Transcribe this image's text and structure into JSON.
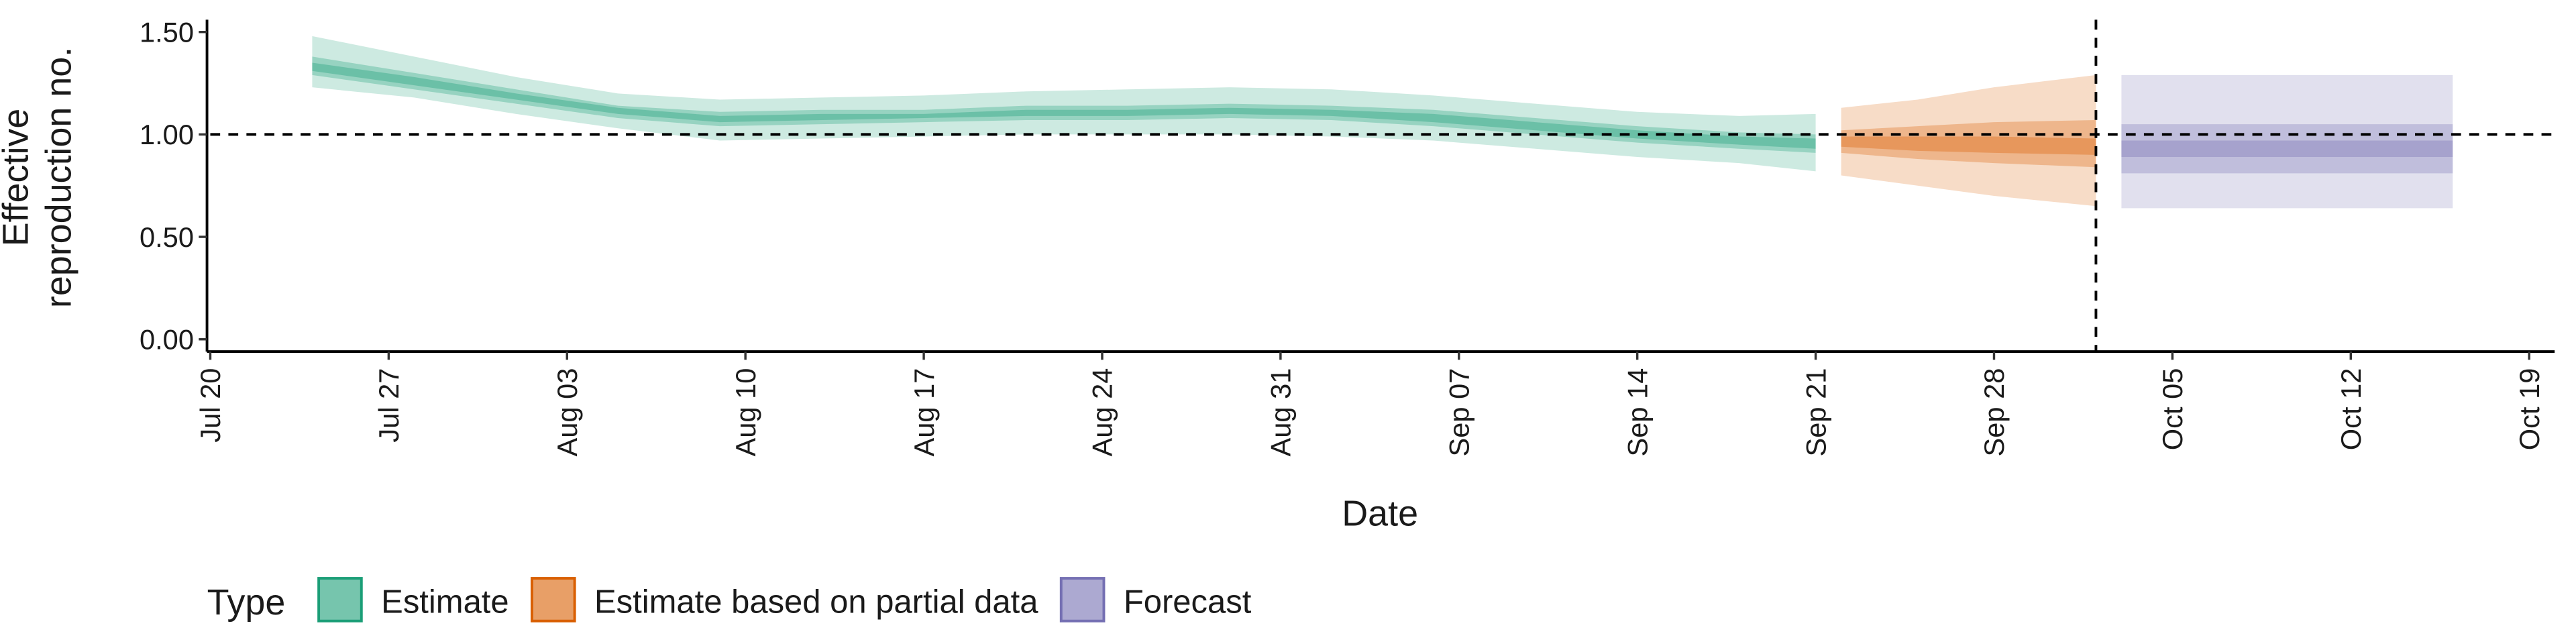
{
  "chart_data": {
    "type": "ribbon",
    "x_label": "Date",
    "y_label": "Effective reproduction no.",
    "legend_title": "Type",
    "legend_position": "bottom",
    "xlim": [
      "Jul 20",
      "Oct 20"
    ],
    "xticks": [
      "Jul 20",
      "Jul 27",
      "Aug 03",
      "Aug 10",
      "Aug 17",
      "Aug 24",
      "Aug 31",
      "Sep 07",
      "Sep 14",
      "Sep 21",
      "Sep 28",
      "Oct 05",
      "Oct 12",
      "Oct 19"
    ],
    "ylim": [
      -0.06,
      1.56
    ],
    "yticks": [
      {
        "value": 0,
        "label": "0.00"
      },
      {
        "value": 0.5,
        "label": "0.50"
      },
      {
        "value": 1,
        "label": "1.00"
      },
      {
        "value": 1.5,
        "label": "1.50"
      }
    ],
    "band_opacity": [
      0.22,
      0.3,
      0.35
    ],
    "reference_lines": {
      "y": 1,
      "x": "Oct 2"
    },
    "series": [
      {
        "name": "Estimate",
        "color": "#1b9e77",
        "x": [
          "Jul 24",
          "Jul 28",
          "Aug 1",
          "Aug 5",
          "Aug 9",
          "Aug 13",
          "Aug 17",
          "Aug 21",
          "Aug 25",
          "Aug 29",
          "Sep 2",
          "Sep 6",
          "Sep 10",
          "Sep 14",
          "Sep 18",
          "Sep 21"
        ],
        "bands": [
          {
            "lower": [
              1.23,
              1.18,
              1.1,
              1.03,
              0.97,
              0.98,
              0.99,
              1.0,
              1.0,
              1.0,
              0.99,
              0.97,
              0.93,
              0.89,
              0.86,
              0.82
            ],
            "upper": [
              1.48,
              1.38,
              1.28,
              1.2,
              1.17,
              1.18,
              1.19,
              1.21,
              1.22,
              1.23,
              1.22,
              1.19,
              1.15,
              1.11,
              1.09,
              1.1
            ]
          },
          {
            "lower": [
              1.29,
              1.22,
              1.15,
              1.08,
              1.04,
              1.05,
              1.06,
              1.07,
              1.07,
              1.08,
              1.07,
              1.04,
              1.0,
              0.96,
              0.93,
              0.91
            ],
            "upper": [
              1.38,
              1.3,
              1.22,
              1.14,
              1.11,
              1.12,
              1.12,
              1.14,
              1.14,
              1.15,
              1.14,
              1.12,
              1.08,
              1.04,
              1.01,
              1.0
            ]
          },
          {
            "lower": [
              1.31,
              1.24,
              1.17,
              1.1,
              1.06,
              1.07,
              1.08,
              1.09,
              1.09,
              1.1,
              1.09,
              1.06,
              1.02,
              0.98,
              0.95,
              0.93
            ],
            "upper": [
              1.35,
              1.28,
              1.2,
              1.13,
              1.09,
              1.1,
              1.1,
              1.12,
              1.12,
              1.13,
              1.12,
              1.1,
              1.06,
              1.02,
              0.99,
              0.98
            ]
          }
        ]
      },
      {
        "name": "Estimate based on partial data",
        "color": "#d95f02",
        "x": [
          "Sep 22",
          "Sep 25",
          "Sep 28",
          "Oct 2"
        ],
        "bands": [
          {
            "lower": [
              0.8,
              0.75,
              0.7,
              0.65
            ],
            "upper": [
              1.13,
              1.17,
              1.23,
              1.29
            ]
          },
          {
            "lower": [
              0.91,
              0.88,
              0.86,
              0.84
            ],
            "upper": [
              1.02,
              1.04,
              1.06,
              1.07
            ]
          },
          {
            "lower": [
              0.94,
              0.92,
              0.91,
              0.9
            ],
            "upper": [
              0.99,
              0.99,
              0.99,
              0.98
            ]
          }
        ]
      },
      {
        "name": "Forecast",
        "color": "#7570b3",
        "x": [
          "Oct 3",
          "Oct 16"
        ],
        "bands": [
          {
            "lower": [
              0.64,
              0.64
            ],
            "upper": [
              1.29,
              1.29
            ]
          },
          {
            "lower": [
              0.81,
              0.81
            ],
            "upper": [
              1.05,
              1.05
            ]
          },
          {
            "lower": [
              0.89,
              0.89
            ],
            "upper": [
              0.97,
              0.97
            ]
          }
        ]
      }
    ]
  }
}
